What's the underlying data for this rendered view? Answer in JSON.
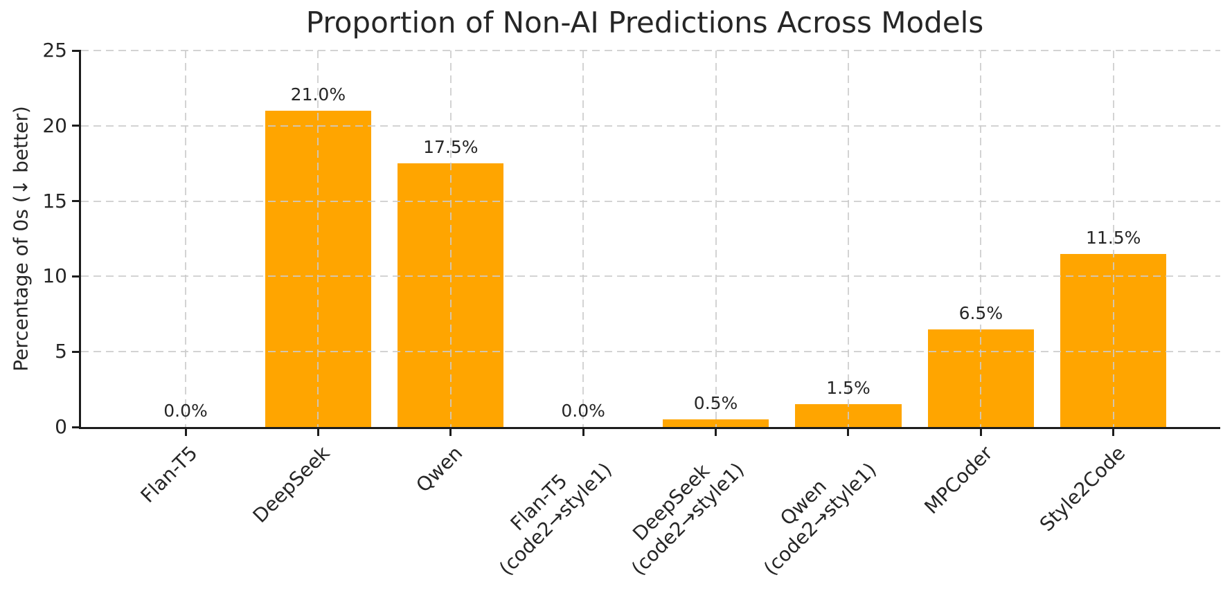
{
  "chart_data": {
    "type": "bar",
    "title": "Proportion of Non-AI Predictions Across Models",
    "ylabel": "Percentage of 0s (↓ better)",
    "xlabel": "",
    "categories": [
      "Flan-T5",
      "DeepSeek",
      "Qwen",
      "Flan-T5\n(code2→style1)",
      "DeepSeek\n(code2→style1)",
      "Qwen\n(code2→style1)",
      "MPCoder",
      "Style2Code"
    ],
    "values": [
      0.0,
      21.0,
      17.5,
      0.0,
      0.5,
      1.5,
      6.5,
      11.5
    ],
    "value_labels": [
      "0.0%",
      "21.0%",
      "17.5%",
      "0.0%",
      "0.5%",
      "1.5%",
      "6.5%",
      "11.5%"
    ],
    "ylim": [
      0,
      25
    ],
    "yticks": [
      0,
      5,
      10,
      15,
      20,
      25
    ],
    "grid": "dashed horizontal and vertical, drawn above bars",
    "legend": "none",
    "bar_color": "#FFA500",
    "grid_color": "#cccccc",
    "text_color": "#262626",
    "spine_color": "#1c1c1c",
    "tick_label_rotation_deg": 45
  }
}
